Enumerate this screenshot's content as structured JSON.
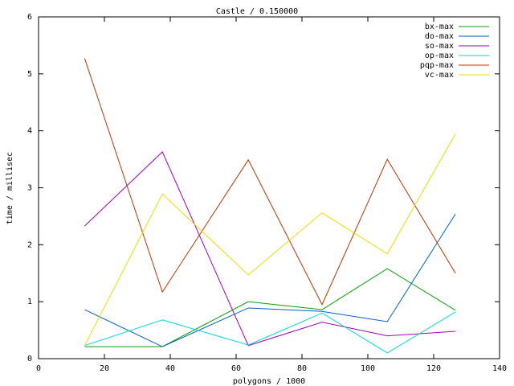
{
  "chart_data": {
    "type": "line",
    "title": "Castle / 0.150000",
    "x_label": "polygons / 1000",
    "y_label": "time / millisec",
    "x": [
      14,
      37.6,
      63.7,
      86.1,
      105.9,
      126.6
    ],
    "series": [
      {
        "name": "bx-max",
        "color": "#00a000",
        "values": [
          0.21,
          0.21,
          1.0,
          0.86,
          1.58,
          0.85
        ]
      },
      {
        "name": "do-max",
        "color": "#0060d0",
        "values": [
          0.86,
          0.21,
          0.89,
          0.83,
          0.65,
          2.54
        ]
      },
      {
        "name": "so-max",
        "color": "#a000c0",
        "values": [
          2.33,
          3.63,
          0.23,
          0.64,
          0.4,
          0.48
        ]
      },
      {
        "name": "op-max",
        "color": "#00d8e0",
        "values": [
          0.23,
          0.68,
          0.24,
          0.8,
          0.1,
          0.82
        ]
      },
      {
        "name": "pqp-max",
        "color": "#c03000",
        "values": [
          5.27,
          1.17,
          3.49,
          0.95,
          3.5,
          1.5
        ]
      },
      {
        "name": "vc-max",
        "color": "#e8e000",
        "values": [
          0.23,
          2.89,
          1.47,
          2.56,
          1.84,
          3.95
        ]
      }
    ],
    "xlim": [
      0,
      140
    ],
    "xticks": [
      0,
      20,
      40,
      60,
      80,
      100,
      120,
      140
    ],
    "ylim": [
      0,
      6
    ],
    "yticks": [
      0,
      1,
      2,
      3,
      4,
      5,
      6
    ],
    "grid": false,
    "legend": "top-right"
  }
}
